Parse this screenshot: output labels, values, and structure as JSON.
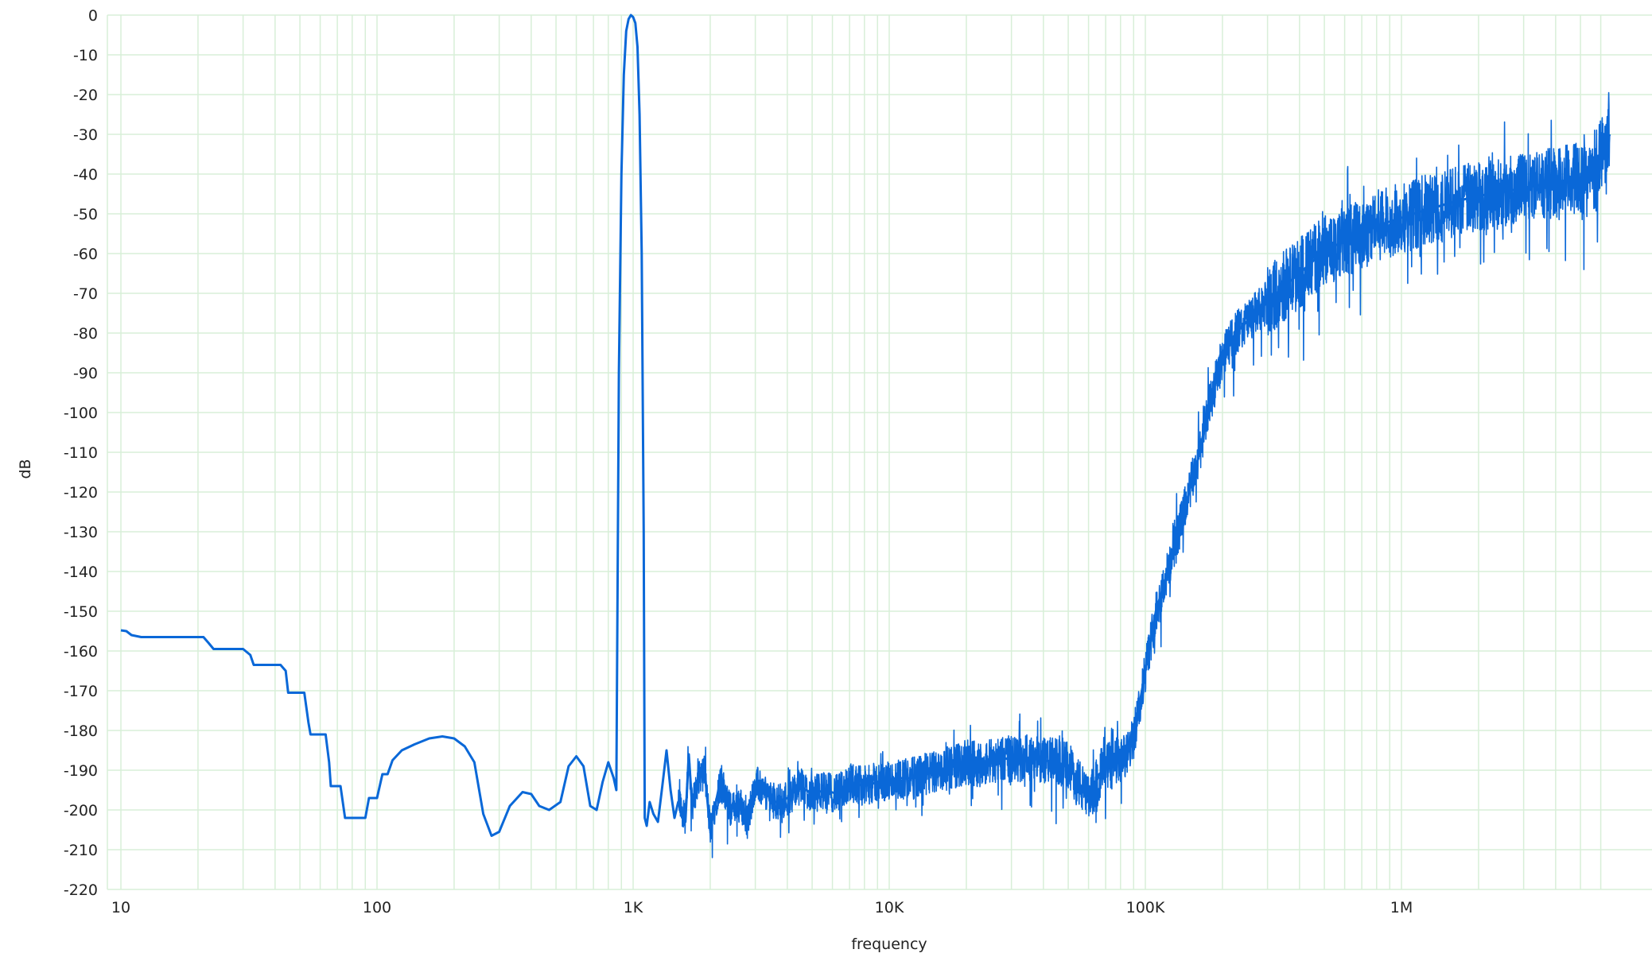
{
  "chart_data": {
    "type": "line",
    "title": "",
    "xlabel": "frequency",
    "ylabel": "dB",
    "x_scale": "log",
    "xlim": [
      10,
      6500000
    ],
    "ylim": [
      -220,
      0
    ],
    "grid": true,
    "legend": "none",
    "colors": {
      "series": "#0a68d8",
      "grid": "#d8efd8",
      "text": "#222222"
    },
    "y_ticks": [
      {
        "v": 0,
        "label": "0"
      },
      {
        "v": -10,
        "label": "-10"
      },
      {
        "v": -20,
        "label": "-20"
      },
      {
        "v": -30,
        "label": "-30"
      },
      {
        "v": -40,
        "label": "-40"
      },
      {
        "v": -50,
        "label": "-50"
      },
      {
        "v": -60,
        "label": "-60"
      },
      {
        "v": -70,
        "label": "-70"
      },
      {
        "v": -80,
        "label": "-80"
      },
      {
        "v": -90,
        "label": "-90"
      },
      {
        "v": -100,
        "label": "-100"
      },
      {
        "v": -110,
        "label": "-110"
      },
      {
        "v": -120,
        "label": "-120"
      },
      {
        "v": -130,
        "label": "-130"
      },
      {
        "v": -140,
        "label": "-140"
      },
      {
        "v": -150,
        "label": "-150"
      },
      {
        "v": -160,
        "label": "-160"
      },
      {
        "v": -170,
        "label": "-170"
      },
      {
        "v": -180,
        "label": "-180"
      },
      {
        "v": -190,
        "label": "-190"
      },
      {
        "v": -200,
        "label": "-200"
      },
      {
        "v": -210,
        "label": "-210"
      },
      {
        "v": -220,
        "label": "-220"
      }
    ],
    "x_ticks": [
      {
        "v": 10,
        "label": "10"
      },
      {
        "v": 100,
        "label": "100"
      },
      {
        "v": 1000,
        "label": "1K"
      },
      {
        "v": 10000,
        "label": "10K"
      },
      {
        "v": 100000,
        "label": "100K"
      },
      {
        "v": 1000000,
        "label": "1M"
      }
    ],
    "series": [
      {
        "x": [
          10,
          10.5,
          11,
          12,
          15,
          18,
          21,
          22,
          23,
          30,
          32,
          33,
          42,
          44,
          45,
          52,
          54,
          55,
          63,
          65,
          66,
          72,
          75,
          90,
          93,
          100,
          105,
          110,
          115,
          125,
          140,
          160,
          180,
          200,
          220,
          240,
          260,
          280,
          300,
          330,
          370,
          400,
          430,
          470,
          520,
          560,
          600,
          640,
          680,
          720,
          760,
          800,
          840,
          860,
          880,
          900,
          920,
          940,
          960,
          980,
          1000,
          1020,
          1040,
          1060,
          1080,
          1100,
          1110,
          1130,
          1160,
          1200,
          1250,
          1300,
          1350,
          1400,
          1450,
          1500,
          1550,
          1600,
          1650,
          1700,
          1800,
          1900,
          2000,
          2200,
          2400,
          2600,
          2800,
          3000,
          3300,
          3600,
          4000,
          4500,
          5000,
          5600,
          6300,
          7000,
          8000,
          9000,
          10000,
          11000,
          12500,
          14000,
          16000,
          18000,
          20000,
          22500,
          25000,
          28000,
          31500,
          35000,
          40000,
          45000,
          50000,
          55000,
          60000,
          66000,
          72000,
          78000,
          85000,
          90000,
          100000,
          110000,
          125000,
          140000,
          160000,
          180000,
          200000,
          225000,
          250000,
          280000,
          315000,
          350000,
          400000,
          450000,
          500000,
          600000,
          700000,
          800000,
          1000000,
          1250000,
          1600000,
          2000000,
          2500000,
          3000000,
          4000000,
          5000000,
          5800000,
          6000000,
          6300000,
          6500000
        ],
        "y": [
          -154.8,
          -155.0,
          -156.0,
          -156.5,
          -156.5,
          -156.5,
          -156.5,
          -158.0,
          -159.5,
          -159.5,
          -161.0,
          -163.5,
          -163.5,
          -165.0,
          -170.5,
          -170.5,
          -178.0,
          -181.0,
          -181.0,
          -188.0,
          -194.0,
          -194.0,
          -202.0,
          -202.0,
          -197.0,
          -197.0,
          -191.0,
          -191.0,
          -187.5,
          -185.0,
          -183.5,
          -182.0,
          -181.5,
          -182.0,
          -184.0,
          -188.0,
          -201.0,
          -206.5,
          -205.5,
          -199.0,
          -195.5,
          -196.0,
          -199.0,
          -200.0,
          -198.0,
          -189.0,
          -186.5,
          -189.0,
          -199.0,
          -200.0,
          -193.0,
          -188.0,
          -192.0,
          -195.0,
          -90.0,
          -40.0,
          -15.0,
          -4.0,
          -1.0,
          0.0,
          -0.5,
          -2.0,
          -8.0,
          -25.0,
          -60.0,
          -130.0,
          -202.0,
          -204.0,
          -198.0,
          -201.0,
          -203.0,
          -194.0,
          -185.0,
          -195.0,
          -202.0,
          -198.0,
          -200.0,
          -203.0,
          -186.0,
          -199.0,
          -192.0,
          -190.0,
          -205.0,
          -192.0,
          -200.0,
          -198.0,
          -203.0,
          -193.0,
          -196.0,
          -198.0,
          -197.0,
          -194.0,
          -196.0,
          -195.0,
          -196.0,
          -193.0,
          -194.0,
          -193.0,
          -193.0,
          -192.0,
          -192.0,
          -191.0,
          -190.0,
          -189.0,
          -188.0,
          -188.5,
          -187.5,
          -187.0,
          -187.5,
          -187.0,
          -187.5,
          -188.0,
          -189.0,
          -193.0,
          -198.0,
          -191.0,
          -189.0,
          -188.0,
          -186.0,
          -182.0,
          -165.0,
          -150.0,
          -138.0,
          -126.0,
          -112.0,
          -97.0,
          -86.0,
          -80.0,
          -77.0,
          -74.0,
          -71.0,
          -68.0,
          -65.0,
          -62.0,
          -59.0,
          -57.0,
          -55.0,
          -53.0,
          -51.0,
          -49.0,
          -47.0,
          -45.5,
          -44.5,
          -43.5,
          -42.0,
          -41.0,
          -40.5,
          -35.0,
          -33.0,
          -30.0
        ]
      }
    ]
  }
}
